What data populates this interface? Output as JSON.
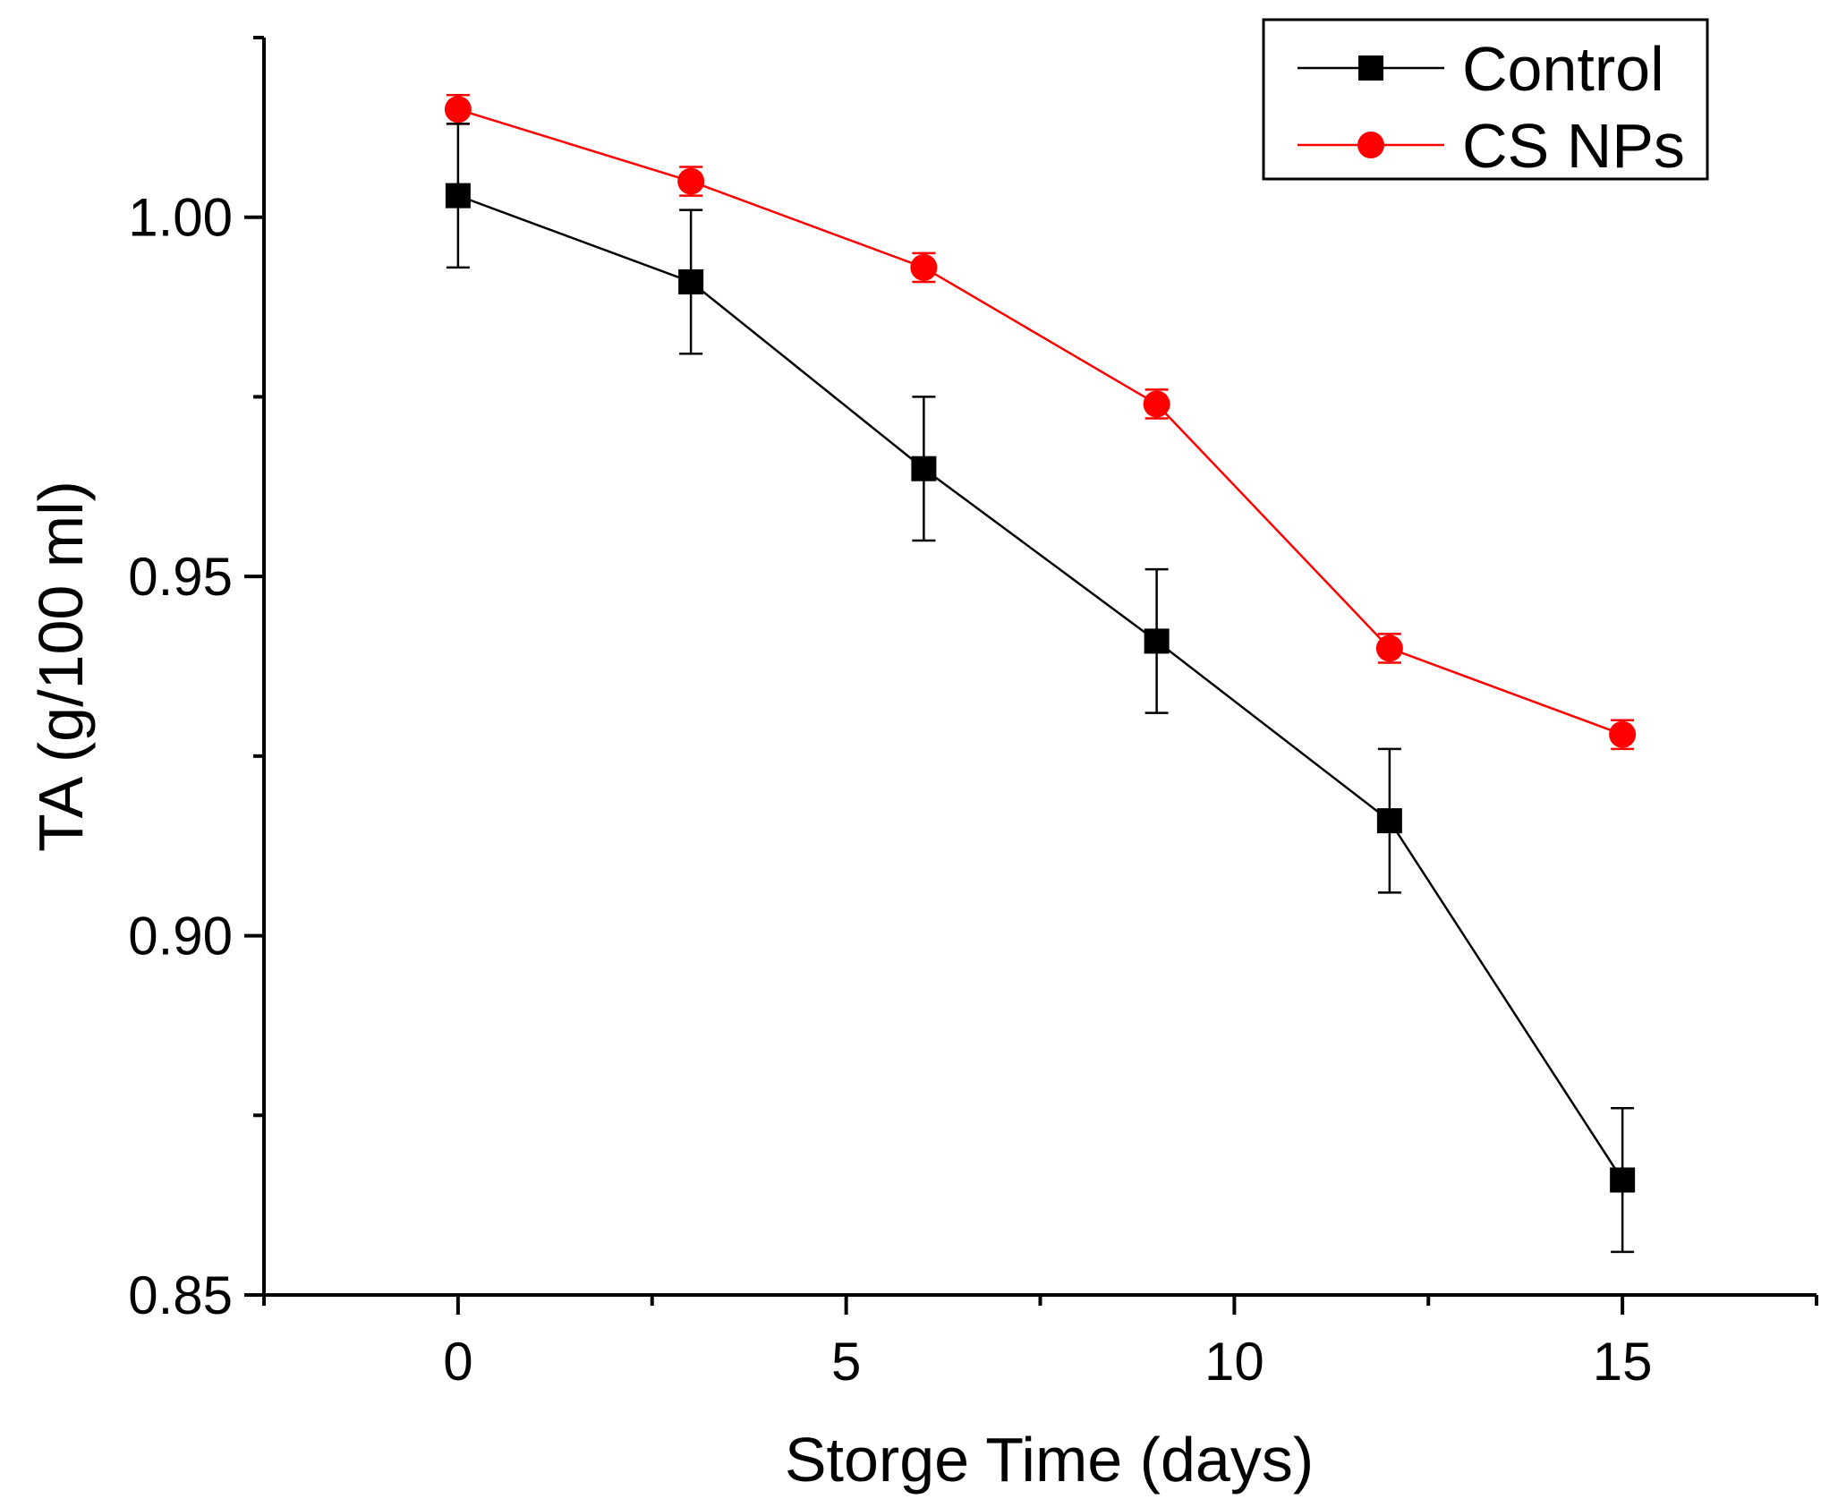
{
  "chart_data": {
    "type": "line",
    "title": "",
    "xlabel": "Storge Time (days)",
    "ylabel": "TA (g/100 ml)",
    "xlim": [
      -2.5,
      17.5
    ],
    "ylim": [
      0.85,
      1.025
    ],
    "x_ticks": [
      0,
      5,
      10,
      15
    ],
    "x_tick_labels": [
      "0",
      "5",
      "10",
      "15"
    ],
    "x_minor_ticks": [
      -2.5,
      2.5,
      7.5,
      12.5,
      17.5
    ],
    "y_ticks": [
      0.85,
      0.9,
      0.95,
      1.0
    ],
    "y_tick_labels": [
      "0.85",
      "0.90",
      "0.95",
      "1.00"
    ],
    "y_minor_ticks": [
      0.875,
      0.925,
      0.975,
      1.025
    ],
    "grid": false,
    "legend_position": "top-right",
    "series": [
      {
        "name": "Control",
        "marker": "square",
        "color": "#000000",
        "x": [
          0,
          3,
          6,
          9,
          12,
          15
        ],
        "values": [
          1.003,
          0.991,
          0.965,
          0.941,
          0.916,
          0.866
        ],
        "errors": [
          0.01,
          0.01,
          0.01,
          0.01,
          0.01,
          0.01
        ]
      },
      {
        "name": "CS NPs",
        "marker": "circle",
        "color": "#ff0000",
        "x": [
          0,
          3,
          6,
          9,
          12,
          15
        ],
        "values": [
          1.015,
          1.005,
          0.993,
          0.974,
          0.94,
          0.928
        ],
        "errors": [
          0.002,
          0.002,
          0.002,
          0.002,
          0.002,
          0.002
        ]
      }
    ]
  }
}
